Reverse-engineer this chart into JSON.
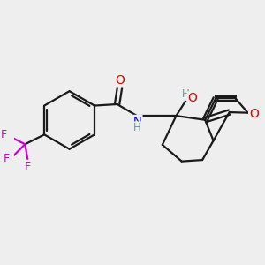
{
  "background_color": "#eeeeee",
  "line_color": "#1a1a1a",
  "bond_width": 1.6,
  "figsize": [
    3.0,
    3.0
  ],
  "dpi": 100,
  "atom_colors": {
    "O": "#dd0000",
    "N": "#0000cc",
    "F": "#cc00cc",
    "H_gray": "#669999"
  }
}
